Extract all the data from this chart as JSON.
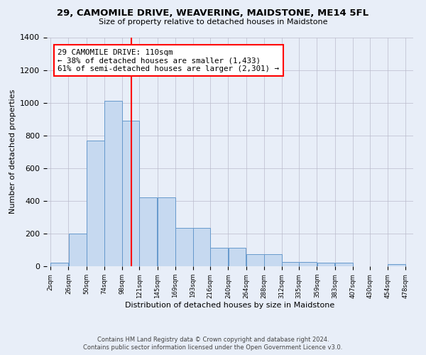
{
  "title": "29, CAMOMILE DRIVE, WEAVERING, MAIDSTONE, ME14 5FL",
  "subtitle": "Size of property relative to detached houses in Maidstone",
  "xlabel": "Distribution of detached houses by size in Maidstone",
  "ylabel": "Number of detached properties",
  "bar_edges": [
    2,
    26,
    50,
    74,
    98,
    121,
    145,
    169,
    193,
    216,
    240,
    264,
    288,
    312,
    335,
    359,
    383,
    407,
    430,
    454,
    478
  ],
  "bar_heights": [
    20,
    200,
    770,
    1010,
    890,
    420,
    420,
    235,
    235,
    115,
    115,
    75,
    75,
    25,
    25,
    20,
    20,
    0,
    0,
    15,
    15
  ],
  "bar_color": "#c6d9f0",
  "bar_edgecolor": "#6699cc",
  "property_line_x": 110,
  "property_line_color": "red",
  "annotation_text": "29 CAMOMILE DRIVE: 110sqm\n← 38% of detached houses are smaller (1,433)\n61% of semi-detached houses are larger (2,301) →",
  "annotation_box_color": "white",
  "annotation_box_edgecolor": "red",
  "ylim": [
    0,
    1400
  ],
  "yticks": [
    0,
    200,
    400,
    600,
    800,
    1000,
    1200,
    1400
  ],
  "tick_labels": [
    "2sqm",
    "26sqm",
    "50sqm",
    "74sqm",
    "98sqm",
    "121sqm",
    "145sqm",
    "169sqm",
    "193sqm",
    "216sqm",
    "240sqm",
    "264sqm",
    "288sqm",
    "312sqm",
    "335sqm",
    "359sqm",
    "383sqm",
    "407sqm",
    "430sqm",
    "454sqm",
    "478sqm"
  ],
  "footer_line1": "Contains HM Land Registry data © Crown copyright and database right 2024.",
  "footer_line2": "Contains public sector information licensed under the Open Government Licence v3.0.",
  "bg_color": "#e8eef8",
  "grid_color": "#bbbbcc"
}
